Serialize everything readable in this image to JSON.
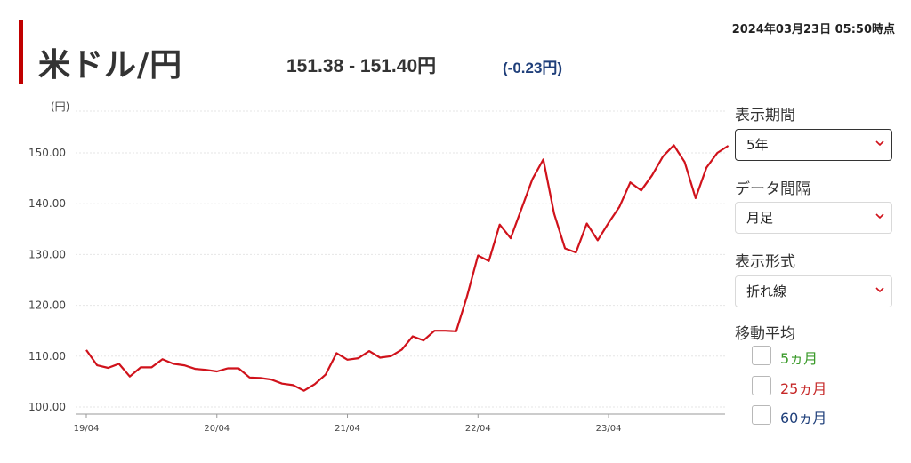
{
  "header": {
    "title": "米ドル/円",
    "rate": "151.38 - 151.40円",
    "change": "(-0.23円)",
    "datetime": "2024年03月23日 05:50時点"
  },
  "controls": {
    "period_label": "表示期間",
    "period_value": "5年",
    "interval_label": "データ間隔",
    "interval_value": "月足",
    "format_label": "表示形式",
    "format_value": "折れ線",
    "ma_label": "移動平均",
    "ma_options": [
      {
        "label": "5ヵ月",
        "color": "#3a9a2a"
      },
      {
        "label": "25ヵ月",
        "color": "#c62828"
      },
      {
        "label": "60ヵ月",
        "color": "#1f3f7a"
      }
    ]
  },
  "colors": {
    "accent": "#c00000",
    "line": "#d0121b",
    "change": "#1f3f7a"
  },
  "chart_data": {
    "type": "line",
    "ylabel": "(円)",
    "ylim": [
      97.5,
      153
    ],
    "y_ticks": [
      "100.00",
      "110.00",
      "120.00",
      "130.00",
      "140.00",
      "150.00"
    ],
    "x_ticks": [
      "19/04",
      "20/04",
      "21/04",
      "22/04",
      "23/04"
    ],
    "grid": true,
    "series": [
      {
        "values": [
          111.2,
          108.2,
          107.7,
          108.5,
          106.0,
          107.8,
          107.8,
          109.4,
          108.5,
          108.2,
          107.5,
          107.3,
          107.0,
          107.6,
          107.6,
          105.8,
          105.7,
          105.4,
          104.6,
          104.3,
          103.2,
          104.5,
          106.4,
          110.6,
          109.3,
          109.6,
          111.0,
          109.7,
          110.0,
          111.3,
          113.9,
          113.1,
          115.0,
          115.0,
          114.9,
          121.8,
          129.8,
          128.7,
          135.9,
          133.2,
          139.0,
          144.8,
          148.7,
          138.0,
          131.2,
          130.4,
          136.1,
          132.8,
          136.2,
          139.4,
          144.2,
          142.6,
          145.6,
          149.3,
          151.5,
          148.2,
          141.1,
          147.1,
          150.0,
          151.4
        ]
      }
    ]
  }
}
